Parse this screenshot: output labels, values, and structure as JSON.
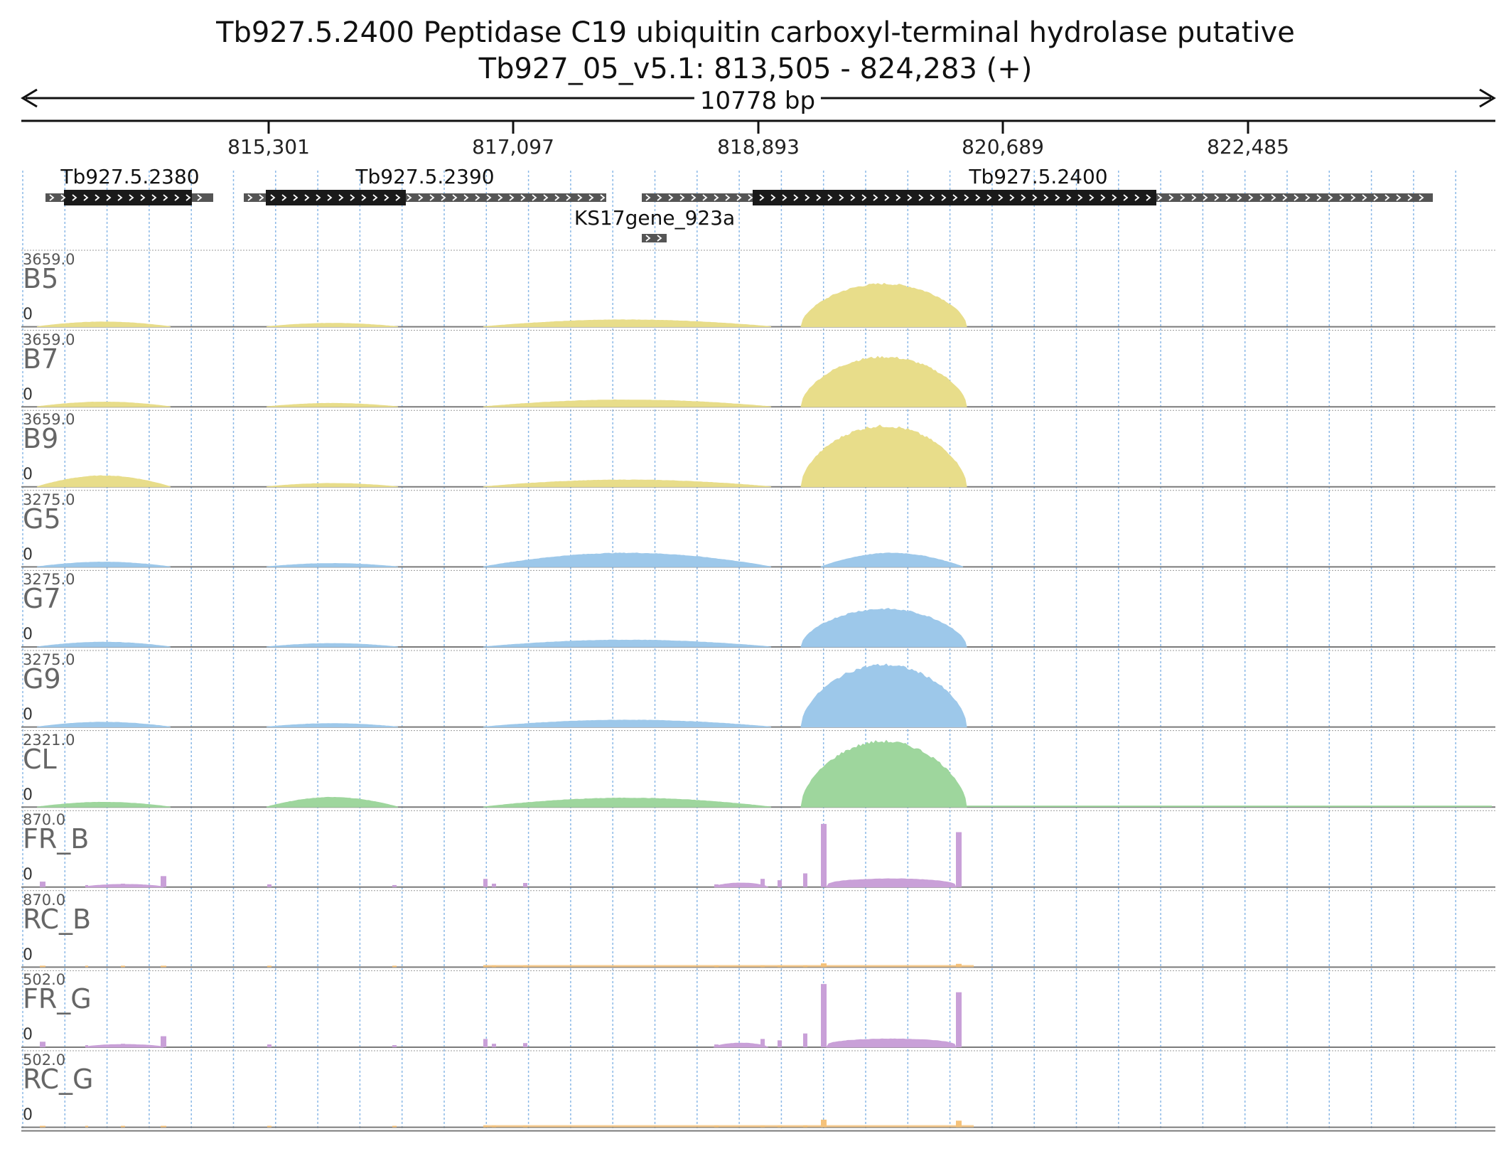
{
  "header": {
    "title": "Tb927.5.2400  Peptidase C19  ubiquitin carboxyl-terminal hydrolase  putative",
    "location": "Tb927_05_v5.1: 813,505 - 824,283 (+)",
    "span_label": "10778 bp"
  },
  "ruler": {
    "ticks": [
      "815,301",
      "817,097",
      "818,893",
      "820,689",
      "822,485"
    ]
  },
  "genes": [
    {
      "name": "Tb927.5.2380"
    },
    {
      "name": "Tb927.5.2390"
    },
    {
      "name": "KS17gene_923a"
    },
    {
      "name": "Tb927.5.2400"
    }
  ],
  "colors": {
    "B": "#e8dd8a",
    "G": "#9dc8ea",
    "CL": "#9ed69d",
    "FR": "#c9a0d8",
    "RC": "#f5c27a",
    "grid": "#8ab8e6",
    "gene_utr": "#555555",
    "gene_cds": "#1a1a1a"
  },
  "tracks": [
    {
      "name": "B5",
      "max": "3659.0",
      "zero": "0",
      "kind": "coverage",
      "color_key": "B",
      "peak": 0.62
    },
    {
      "name": "B7",
      "max": "3659.0",
      "zero": "0",
      "kind": "coverage",
      "color_key": "B",
      "peak": 0.72
    },
    {
      "name": "B9",
      "max": "3659.0",
      "zero": "0",
      "kind": "coverage",
      "color_key": "B",
      "peak": 0.88
    },
    {
      "name": "G5",
      "max": "3275.0",
      "zero": "0",
      "kind": "coverage",
      "color_key": "G",
      "peak": 0.2
    },
    {
      "name": "G7",
      "max": "3275.0",
      "zero": "0",
      "kind": "coverage",
      "color_key": "G",
      "peak": 0.55
    },
    {
      "name": "G9",
      "max": "3275.0",
      "zero": "0",
      "kind": "coverage",
      "color_key": "G",
      "peak": 0.9
    },
    {
      "name": "CL",
      "max": "2321.0",
      "zero": "0",
      "kind": "coverage",
      "color_key": "CL",
      "peak": 0.95
    },
    {
      "name": "FR_B",
      "max": "870.0",
      "zero": "0",
      "kind": "junction",
      "color_key": "FR",
      "scale": 1.0
    },
    {
      "name": "RC_B",
      "max": "870.0",
      "zero": "0",
      "kind": "junction",
      "color_key": "RC",
      "scale": 0.06
    },
    {
      "name": "FR_G",
      "max": "502.0",
      "zero": "0",
      "kind": "junction",
      "color_key": "FR",
      "scale": 1.0
    },
    {
      "name": "RC_G",
      "max": "502.0",
      "zero": "0",
      "kind": "junction",
      "color_key": "RC",
      "scale": 0.12
    }
  ]
}
